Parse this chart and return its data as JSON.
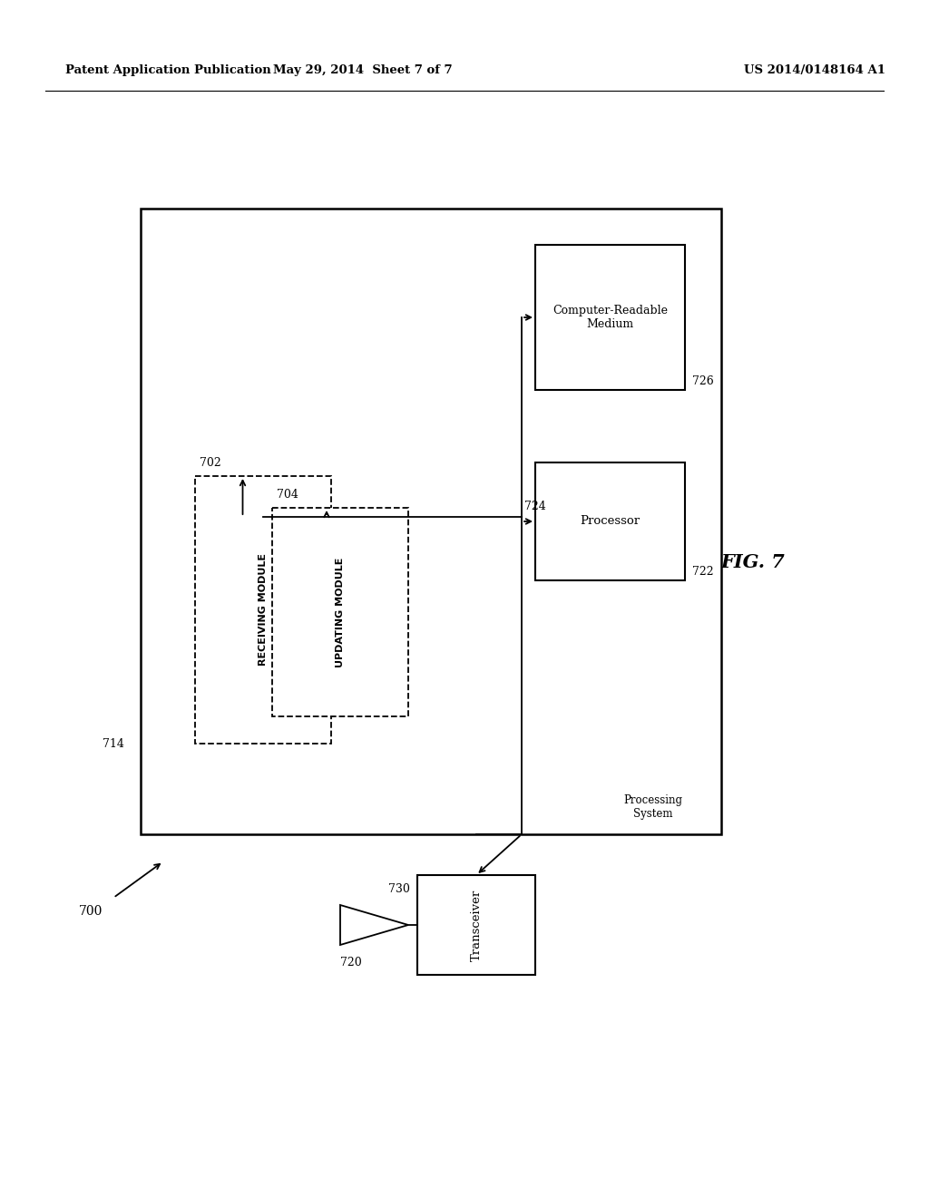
{
  "bg_color": "#ffffff",
  "header_left": "Patent Application Publication",
  "header_mid": "May 29, 2014  Sheet 7 of 7",
  "header_right": "US 2014/0148164 A1",
  "fig_label": "FIG. 7"
}
